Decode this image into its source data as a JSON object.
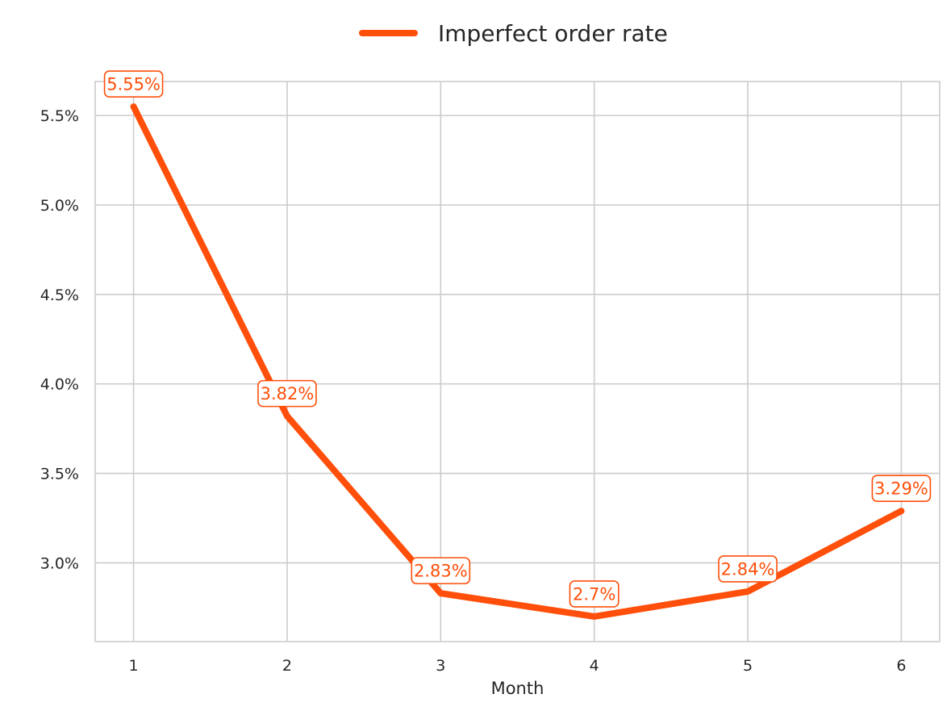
{
  "chart_data": {
    "type": "line",
    "title": "",
    "xlabel": "Month",
    "ylabel": "",
    "x": [
      1,
      2,
      3,
      4,
      5,
      6
    ],
    "x_ticks": [
      "1",
      "2",
      "3",
      "4",
      "5",
      "6"
    ],
    "xlim": [
      0.75,
      6.25
    ],
    "ylim": [
      2.56,
      5.69
    ],
    "y_ticks": [
      3.0,
      3.5,
      4.0,
      4.5,
      5.0,
      5.5
    ],
    "y_tick_labels": [
      "3.0%",
      "3.5%",
      "4.0%",
      "4.5%",
      "5.0%",
      "5.5%"
    ],
    "grid": true,
    "legend_position": "top-center",
    "series": [
      {
        "name": "Imperfect order rate",
        "color": "#FF4F0A",
        "values": [
          5.55,
          3.82,
          2.83,
          2.7,
          2.84,
          3.29
        ],
        "labels": [
          "5.55%",
          "3.82%",
          "2.83%",
          "2.7%",
          "2.84%",
          "3.29%"
        ]
      }
    ]
  }
}
